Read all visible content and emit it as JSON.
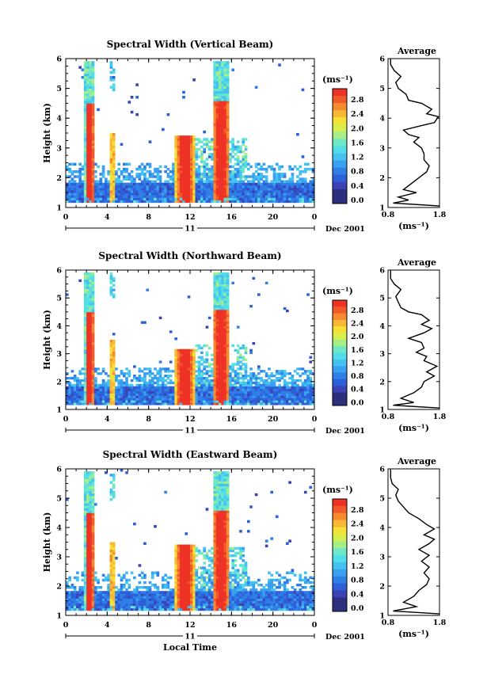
{
  "chart_data": [
    {
      "type": "heatmap",
      "title": "Spectral Width (Vertical Beam)",
      "xlabel": "",
      "ylabel": "Height (km)",
      "xlim": [
        0,
        24
      ],
      "ylim": [
        1,
        6
      ],
      "xticks": [
        "0",
        "4",
        "8",
        "12",
        "16",
        "20",
        "0"
      ],
      "yticks": [
        "1",
        "2",
        "3",
        "4",
        "5",
        "6"
      ],
      "date_label": "Dec 2001",
      "day_label": "11",
      "colorbar": {
        "title": "(ms⁻¹)",
        "ticks": [
          "0.0",
          "0.4",
          "0.8",
          "1.2",
          "1.6",
          "2.0",
          "2.4",
          "2.8"
        ],
        "range": [
          0.0,
          3.0
        ]
      },
      "profile": {
        "title": "Average",
        "xlabel": "(ms⁻¹)",
        "xlim": [
          0.8,
          1.8
        ],
        "xticks": [
          "0.8",
          "1.8"
        ],
        "ylim": [
          1,
          6
        ],
        "yticks": [
          "1",
          "2",
          "3",
          "4",
          "5",
          "6"
        ],
        "points": [
          [
            1.8,
            1.05
          ],
          [
            0.9,
            1.15
          ],
          [
            1.2,
            1.25
          ],
          [
            1.0,
            1.35
          ],
          [
            1.35,
            1.5
          ],
          [
            1.1,
            1.6
          ],
          [
            1.25,
            1.8
          ],
          [
            1.4,
            2.0
          ],
          [
            1.55,
            2.2
          ],
          [
            1.6,
            2.4
          ],
          [
            1.5,
            2.6
          ],
          [
            1.5,
            2.8
          ],
          [
            1.45,
            3.0
          ],
          [
            1.3,
            3.2
          ],
          [
            1.4,
            3.35
          ],
          [
            1.2,
            3.45
          ],
          [
            1.1,
            3.6
          ],
          [
            1.45,
            3.75
          ],
          [
            1.7,
            3.85
          ],
          [
            1.78,
            4.05
          ],
          [
            1.55,
            4.15
          ],
          [
            1.65,
            4.3
          ],
          [
            1.45,
            4.5
          ],
          [
            1.2,
            4.6
          ],
          [
            1.15,
            4.8
          ],
          [
            1.0,
            5.0
          ],
          [
            0.95,
            5.2
          ],
          [
            1.05,
            5.4
          ],
          [
            0.92,
            5.6
          ],
          [
            0.85,
            5.8
          ],
          [
            0.85,
            6.0
          ]
        ]
      }
    },
    {
      "type": "heatmap",
      "title": "Spectral Width (Northward Beam)",
      "xlabel": "",
      "ylabel": "Height (km)",
      "xlim": [
        0,
        24
      ],
      "ylim": [
        1,
        6
      ],
      "xticks": [
        "0",
        "4",
        "8",
        "12",
        "16",
        "20",
        "0"
      ],
      "yticks": [
        "1",
        "2",
        "3",
        "4",
        "5",
        "6"
      ],
      "date_label": "Dec 2001",
      "day_label": "11",
      "colorbar": {
        "title": "(ms⁻¹)",
        "ticks": [
          "0.0",
          "0.4",
          "0.8",
          "1.2",
          "1.6",
          "2.0",
          "2.4",
          "2.8"
        ],
        "range": [
          0.0,
          3.0
        ]
      },
      "profile": {
        "title": "Average",
        "xlabel": "(ms⁻¹)",
        "xlim": [
          0.8,
          1.8
        ],
        "xticks": [
          "0.8",
          "1.8"
        ],
        "ylim": [
          1,
          6
        ],
        "yticks": [
          "1",
          "2",
          "3",
          "4",
          "5",
          "6"
        ],
        "points": [
          [
            1.8,
            1.05
          ],
          [
            0.9,
            1.15
          ],
          [
            1.3,
            1.25
          ],
          [
            1.05,
            1.4
          ],
          [
            1.3,
            1.6
          ],
          [
            1.45,
            1.8
          ],
          [
            1.5,
            2.0
          ],
          [
            1.7,
            2.2
          ],
          [
            1.55,
            2.35
          ],
          [
            1.75,
            2.55
          ],
          [
            1.5,
            2.75
          ],
          [
            1.55,
            2.9
          ],
          [
            1.35,
            3.05
          ],
          [
            1.5,
            3.2
          ],
          [
            1.45,
            3.4
          ],
          [
            1.2,
            3.55
          ],
          [
            1.5,
            3.75
          ],
          [
            1.65,
            3.9
          ],
          [
            1.45,
            4.05
          ],
          [
            1.6,
            4.2
          ],
          [
            1.45,
            4.4
          ],
          [
            1.2,
            4.5
          ],
          [
            1.05,
            4.65
          ],
          [
            1.0,
            4.85
          ],
          [
            0.95,
            5.05
          ],
          [
            1.05,
            5.3
          ],
          [
            0.92,
            5.5
          ],
          [
            0.85,
            5.7
          ],
          [
            0.85,
            6.0
          ]
        ]
      }
    },
    {
      "type": "heatmap",
      "title": "Spectral Width (Eastward Beam)",
      "xlabel": "Local Time",
      "ylabel": "Height (km)",
      "xlim": [
        0,
        24
      ],
      "ylim": [
        1,
        6
      ],
      "xticks": [
        "0",
        "4",
        "8",
        "12",
        "16",
        "20",
        "0"
      ],
      "yticks": [
        "1",
        "2",
        "3",
        "4",
        "5",
        "6"
      ],
      "date_label": "Dec 2001",
      "day_label": "11",
      "colorbar": {
        "title": "(ms⁻¹)",
        "ticks": [
          "0.0",
          "0.4",
          "0.8",
          "1.2",
          "1.6",
          "2.0",
          "2.4",
          "2.8"
        ],
        "range": [
          0.0,
          3.0
        ]
      },
      "profile": {
        "title": "Average",
        "xlabel": "(ms⁻¹)",
        "xlim": [
          0.8,
          1.8
        ],
        "xticks": [
          "0.8",
          "1.8"
        ],
        "ylim": [
          1,
          6
        ],
        "yticks": [
          "1",
          "2",
          "3",
          "4",
          "5",
          "6"
        ],
        "points": [
          [
            1.8,
            1.05
          ],
          [
            0.9,
            1.15
          ],
          [
            1.35,
            1.3
          ],
          [
            1.1,
            1.45
          ],
          [
            1.3,
            1.65
          ],
          [
            1.4,
            1.85
          ],
          [
            1.55,
            2.05
          ],
          [
            1.6,
            2.25
          ],
          [
            1.5,
            2.45
          ],
          [
            1.6,
            2.65
          ],
          [
            1.45,
            2.85
          ],
          [
            1.6,
            3.05
          ],
          [
            1.4,
            3.25
          ],
          [
            1.6,
            3.45
          ],
          [
            1.7,
            3.6
          ],
          [
            1.5,
            3.75
          ],
          [
            1.7,
            3.95
          ],
          [
            1.55,
            4.1
          ],
          [
            1.4,
            4.3
          ],
          [
            1.2,
            4.5
          ],
          [
            1.1,
            4.7
          ],
          [
            1.0,
            4.9
          ],
          [
            0.95,
            5.1
          ],
          [
            1.0,
            5.3
          ],
          [
            0.88,
            5.5
          ],
          [
            0.85,
            5.7
          ],
          [
            0.85,
            6.0
          ]
        ]
      }
    }
  ]
}
